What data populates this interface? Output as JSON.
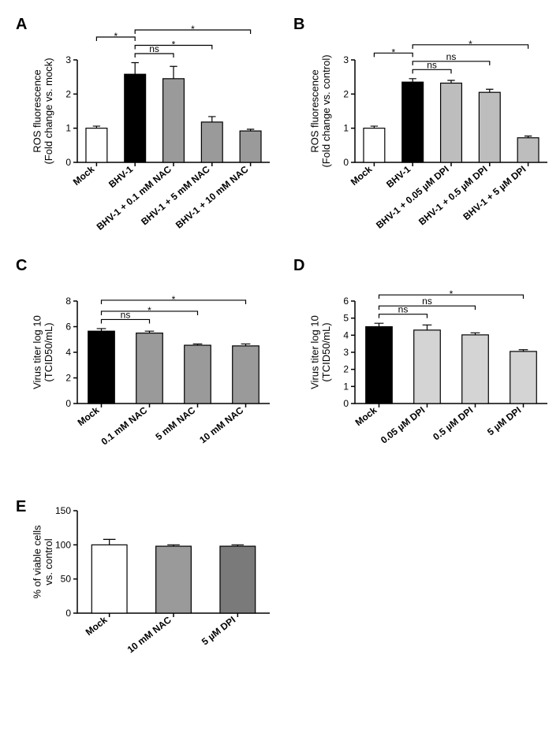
{
  "panels": {
    "A": {
      "label": "A",
      "type": "bar",
      "ylabel_line1": "ROS fluorescence",
      "ylabel_line2": "(Fold change vs. mock)",
      "ylim": [
        0,
        3
      ],
      "ytick_step": 1,
      "categories": [
        "Mock",
        "BHV-1",
        "BHV-1 + 0.1 mM NAC",
        "BHV-1 + 5 mM NAC",
        "BHV-1 + 10 mM NAC"
      ],
      "values": [
        1.0,
        2.58,
        2.45,
        1.18,
        0.92
      ],
      "errors": [
        0.06,
        0.34,
        0.36,
        0.16,
        0.05
      ],
      "bar_colors": [
        "#ffffff",
        "#000000",
        "#9a9a9a",
        "#9a9a9a",
        "#9a9a9a"
      ],
      "bar_width": 0.55,
      "sig": [
        {
          "from": 0,
          "to": 1,
          "label": "*",
          "level": 0.35
        },
        {
          "from": 1,
          "to": 2,
          "label": "ns",
          "level": 0.05
        },
        {
          "from": 1,
          "to": 3,
          "label": "*",
          "level": 0.2
        },
        {
          "from": 1,
          "to": 4,
          "label": "*",
          "level": 0.5
        }
      ],
      "label_fontsize": 13,
      "xlabel_fontsize": 11,
      "x_rotate": -40
    },
    "B": {
      "label": "B",
      "type": "bar",
      "ylabel_line1": "ROS fluorescence",
      "ylabel_line2": "(Fold change vs. control)",
      "ylim": [
        0,
        3
      ],
      "ytick_step": 1,
      "categories": [
        "Mock",
        "BHV-1",
        "BHV-1 + 0.05 µM DPI",
        "BHV-1 + 0.5 µM DPI",
        "BHV-1 + 5 µM DPI"
      ],
      "values": [
        1.0,
        2.35,
        2.32,
        2.05,
        0.72
      ],
      "errors": [
        0.06,
        0.1,
        0.08,
        0.09,
        0.05
      ],
      "bar_colors": [
        "#ffffff",
        "#000000",
        "#bdbdbd",
        "#bdbdbd",
        "#bdbdbd"
      ],
      "bar_width": 0.55,
      "sig": [
        {
          "from": 0,
          "to": 1,
          "label": "*",
          "level": 0.35
        },
        {
          "from": 1,
          "to": 2,
          "label": "ns",
          "level": 0.05
        },
        {
          "from": 1,
          "to": 3,
          "label": "ns",
          "level": 0.2
        },
        {
          "from": 1,
          "to": 4,
          "label": "*",
          "level": 0.5
        }
      ],
      "label_fontsize": 13,
      "xlabel_fontsize": 11,
      "x_rotate": -40
    },
    "C": {
      "label": "C",
      "type": "bar",
      "ylabel_line1": "Virus titer log 10",
      "ylabel_line2": "(TCID50/mL)",
      "ylim": [
        0,
        8
      ],
      "ytick_step": 2,
      "categories": [
        "Mock",
        "0.1 mM NAC",
        "5 mM NAC",
        "10 mM NAC"
      ],
      "values": [
        5.65,
        5.5,
        4.55,
        4.5
      ],
      "errors": [
        0.2,
        0.15,
        0.1,
        0.15
      ],
      "bar_colors": [
        "#000000",
        "#9a9a9a",
        "#9a9a9a",
        "#9a9a9a"
      ],
      "bar_width": 0.55,
      "sig": [
        {
          "from": 0,
          "to": 1,
          "label": "ns",
          "level": 0.05
        },
        {
          "from": 0,
          "to": 2,
          "label": "*",
          "level": 0.2
        },
        {
          "from": 0,
          "to": 3,
          "label": "*",
          "level": 0.4
        }
      ],
      "label_fontsize": 13,
      "xlabel_fontsize": 12,
      "x_rotate": -38
    },
    "D": {
      "label": "D",
      "type": "bar",
      "ylabel_line1": "Virus titer log 10",
      "ylabel_line2": "(TCID50/mL)",
      "ylim": [
        0,
        6
      ],
      "ytick_step": 1,
      "categories": [
        "Mock",
        "0.05 µM DPI",
        "0.5 µM DPI",
        "5 µM DPI"
      ],
      "values": [
        4.5,
        4.3,
        4.02,
        3.05
      ],
      "errors": [
        0.2,
        0.3,
        0.12,
        0.1
      ],
      "bar_colors": [
        "#000000",
        "#d4d4d4",
        "#d4d4d4",
        "#d4d4d4"
      ],
      "bar_width": 0.55,
      "sig": [
        {
          "from": 0,
          "to": 1,
          "label": "ns",
          "level": 0.05
        },
        {
          "from": 0,
          "to": 2,
          "label": "ns",
          "level": 0.2
        },
        {
          "from": 0,
          "to": 3,
          "label": "*",
          "level": 0.4
        }
      ],
      "label_fontsize": 13,
      "xlabel_fontsize": 12,
      "x_rotate": -38
    },
    "E": {
      "label": "E",
      "type": "bar",
      "ylabel_line1": "% of viable cells",
      "ylabel_line2": "vs. control",
      "ylim": [
        0,
        150
      ],
      "ytick_step": 50,
      "categories": [
        "Mock",
        "10 mM NAC",
        "5 µM DPI"
      ],
      "values": [
        100,
        98,
        98
      ],
      "errors": [
        8,
        2,
        2
      ],
      "bar_colors": [
        "#ffffff",
        "#9a9a9a",
        "#7a7a7a"
      ],
      "bar_width": 0.55,
      "sig": [],
      "label_fontsize": 13,
      "xlabel_fontsize": 12,
      "x_rotate": -38
    }
  },
  "colors": {
    "axis": "#000000",
    "background": "#ffffff"
  }
}
